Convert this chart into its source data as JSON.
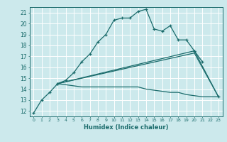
{
  "xlabel": "Humidex (Indice chaleur)",
  "xlim": [
    -0.5,
    23.5
  ],
  "ylim": [
    11.5,
    21.5
  ],
  "yticks": [
    12,
    13,
    14,
    15,
    16,
    17,
    18,
    19,
    20,
    21
  ],
  "xticks": [
    0,
    1,
    2,
    3,
    4,
    5,
    6,
    7,
    8,
    9,
    10,
    11,
    12,
    13,
    14,
    15,
    16,
    17,
    18,
    19,
    20,
    21,
    22,
    23
  ],
  "bg_color": "#cce9ec",
  "grid_color": "#b0d8dc",
  "line_color": "#1a6b6b",
  "line1": {
    "x": [
      0,
      1,
      2,
      3,
      4,
      5,
      6,
      7,
      8,
      9,
      10,
      11,
      12,
      13,
      14,
      15,
      16,
      17,
      18,
      19,
      20,
      21
    ],
    "y": [
      11.8,
      13.0,
      13.7,
      14.5,
      14.8,
      15.5,
      16.5,
      17.2,
      18.3,
      19.0,
      20.3,
      20.5,
      20.5,
      21.1,
      21.3,
      19.5,
      19.3,
      19.8,
      18.5,
      18.5,
      17.5,
      16.5
    ]
  },
  "line2": {
    "x": [
      3,
      20,
      23
    ],
    "y": [
      14.5,
      17.5,
      13.3
    ]
  },
  "line3": {
    "x": [
      3,
      20,
      23
    ],
    "y": [
      14.5,
      17.3,
      13.3
    ]
  },
  "line4": {
    "x": [
      3,
      5,
      6,
      7,
      8,
      9,
      10,
      11,
      12,
      13,
      14,
      15,
      16,
      17,
      18,
      19,
      20,
      21,
      22,
      23
    ],
    "y": [
      14.5,
      14.3,
      14.2,
      14.2,
      14.2,
      14.2,
      14.2,
      14.2,
      14.2,
      14.2,
      14.0,
      13.9,
      13.8,
      13.7,
      13.7,
      13.5,
      13.4,
      13.3,
      13.3,
      13.3
    ]
  }
}
